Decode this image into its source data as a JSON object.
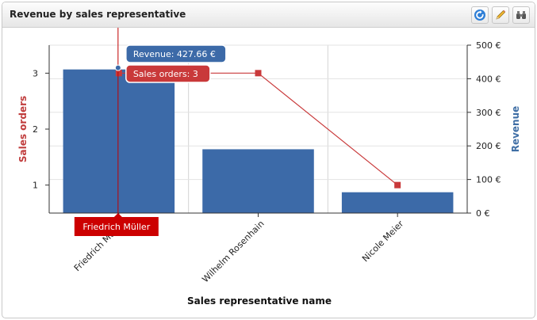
{
  "panel": {
    "title": "Revenue by sales representative",
    "toolbar": [
      {
        "name": "refresh-icon"
      },
      {
        "name": "pencil-icon"
      },
      {
        "name": "binoculars-icon"
      }
    ]
  },
  "colors": {
    "bar": "#3c6aa8",
    "line": "#c9393a",
    "orders_axis_label": "#c03c3c",
    "revenue_axis_label": "#3f6ea5",
    "crosshair": "#c00000",
    "name_tag": "#cc0000"
  },
  "chart_data": {
    "type": "bar",
    "categories": [
      "Friedrich Müller",
      "Wilhelm Rosenhain",
      "Nicole Meier"
    ],
    "series": [
      {
        "name": "Revenue",
        "type": "bar",
        "axis": "right",
        "values": [
          427.66,
          190,
          62
        ]
      },
      {
        "name": "Sales orders",
        "type": "line",
        "axis": "left",
        "values": [
          3,
          3,
          1
        ]
      }
    ],
    "xlabel": "Sales representative name",
    "ylabel_left": "Sales orders",
    "ylabel_right": "Revenue",
    "y_left": {
      "min": 0.5,
      "max": 3.5,
      "ticks": [
        "1",
        "2",
        "3"
      ]
    },
    "y_right": {
      "min": 0,
      "max": 500,
      "ticks": [
        "0 €",
        "100 €",
        "200 €",
        "300 €",
        "400 €",
        "500 €"
      ]
    },
    "grid": true,
    "tooltip": {
      "category_index": 0,
      "revenue_text": "Revenue: 427.66 €",
      "orders_text": "Sales orders: 3",
      "category_text": "Friedrich Müller"
    }
  }
}
